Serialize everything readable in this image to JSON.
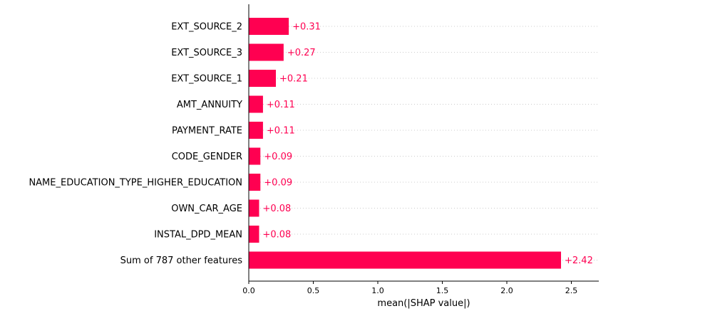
{
  "colors": {
    "bar": "#ff0051",
    "value_text": "#ff0051",
    "axis": "#000000",
    "gridline": "#cccccc"
  },
  "chart_data": {
    "type": "bar",
    "orientation": "horizontal",
    "categories": [
      "EXT_SOURCE_2",
      "EXT_SOURCE_3",
      "EXT_SOURCE_1",
      "AMT_ANNUITY",
      "PAYMENT_RATE",
      "CODE_GENDER",
      "NAME_EDUCATION_TYPE_HIGHER_EDUCATION",
      "OWN_CAR_AGE",
      "INSTAL_DPD_MEAN",
      "Sum of 787 other features"
    ],
    "values": [
      0.31,
      0.27,
      0.21,
      0.11,
      0.11,
      0.09,
      0.09,
      0.08,
      0.08,
      2.42
    ],
    "value_labels": [
      "+0.31",
      "+0.27",
      "+0.21",
      "+0.11",
      "+0.11",
      "+0.09",
      "+0.09",
      "+0.08",
      "+0.08",
      "+2.42"
    ],
    "xlabel": "mean(|SHAP value|)",
    "xticks": [
      0.0,
      0.5,
      1.0,
      1.5,
      2.0,
      2.5
    ],
    "xtick_labels": [
      "0.0",
      "0.5",
      "1.0",
      "1.5",
      "2.0",
      "2.5"
    ],
    "xlim": [
      0,
      2.65
    ],
    "grid": "dotted horizontal lines per row"
  }
}
